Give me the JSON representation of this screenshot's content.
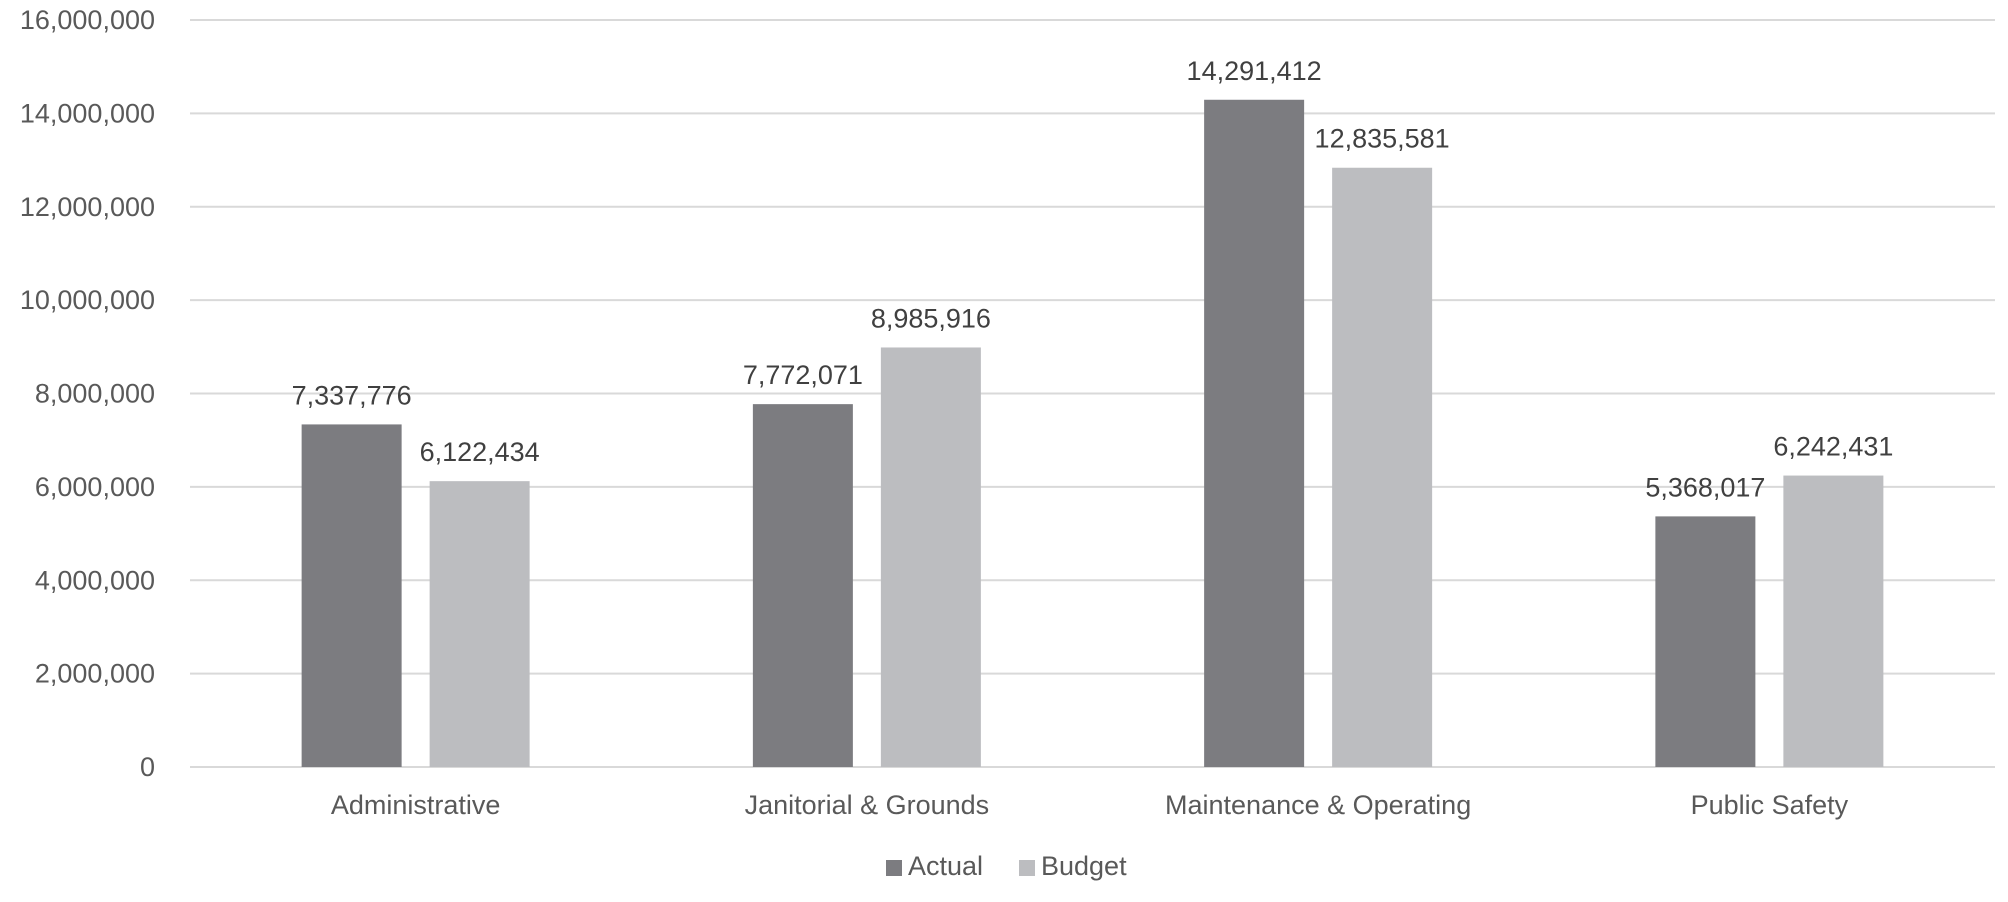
{
  "chart_data": {
    "type": "bar",
    "title": "",
    "xlabel": "",
    "ylabel": "",
    "categories": [
      "Administrative",
      "Janitorial & Grounds",
      "Maintenance & Operating",
      "Public Safety"
    ],
    "series": [
      {
        "name": "Actual",
        "color": "#7c7c80",
        "values": [
          7337776,
          7772071,
          14291412,
          5368017
        ],
        "labels": [
          "7,337,776",
          "7,772,071",
          "14,291,412",
          "5,368,017"
        ]
      },
      {
        "name": "Budget",
        "color": "#bcbdc0",
        "values": [
          6122434,
          8985916,
          12835581,
          6242431
        ],
        "labels": [
          "6,122,434",
          "8,985,916",
          "12,835,581",
          "6,242,431"
        ]
      }
    ],
    "ylim": [
      0,
      16000000
    ],
    "yticks": [
      0,
      2000000,
      4000000,
      6000000,
      8000000,
      10000000,
      12000000,
      14000000,
      16000000
    ],
    "ytick_labels": [
      "0",
      "2,000,000",
      "4,000,000",
      "6,000,000",
      "8,000,000",
      "10,000,000",
      "12,000,000",
      "14,000,000",
      "16,000,000"
    ],
    "grid": true,
    "legend_position": "bottom-center"
  }
}
